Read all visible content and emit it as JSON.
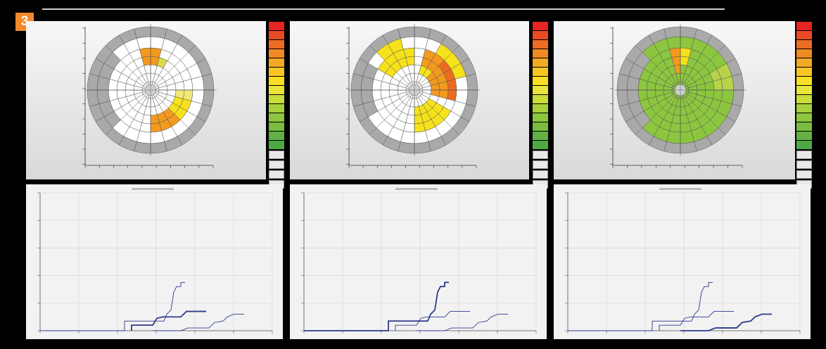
{
  "figure": {
    "badge": "3"
  },
  "colors": {
    "gray_ring": "#a9a9a9",
    "white": "#ffffff",
    "yellow": "#f5e21b",
    "light_yellow": "#f3e97a",
    "orange": "#f39a1e",
    "dark_orange": "#ec6b1e",
    "green": "#8cc63f",
    "line_blue": "#2c3a8c"
  },
  "scale_colors": [
    "#e52521",
    "#e84a26",
    "#ed6b25",
    "#f08b24",
    "#f4a924",
    "#f7c623",
    "#f8de24",
    "#e8e43a",
    "#c9dc3a",
    "#a8cf3c",
    "#8cc63f",
    "#79bc40",
    "#64b245",
    "#4ea846"
  ],
  "panels": [
    {
      "mode": "white-yellow-orange",
      "curve": "top"
    },
    {
      "mode": "yellow-orange",
      "curve": "middle"
    },
    {
      "mode": "green",
      "curve": "bottom"
    }
  ],
  "scale_buttons": [
    "",
    "",
    "",
    ""
  ]
}
